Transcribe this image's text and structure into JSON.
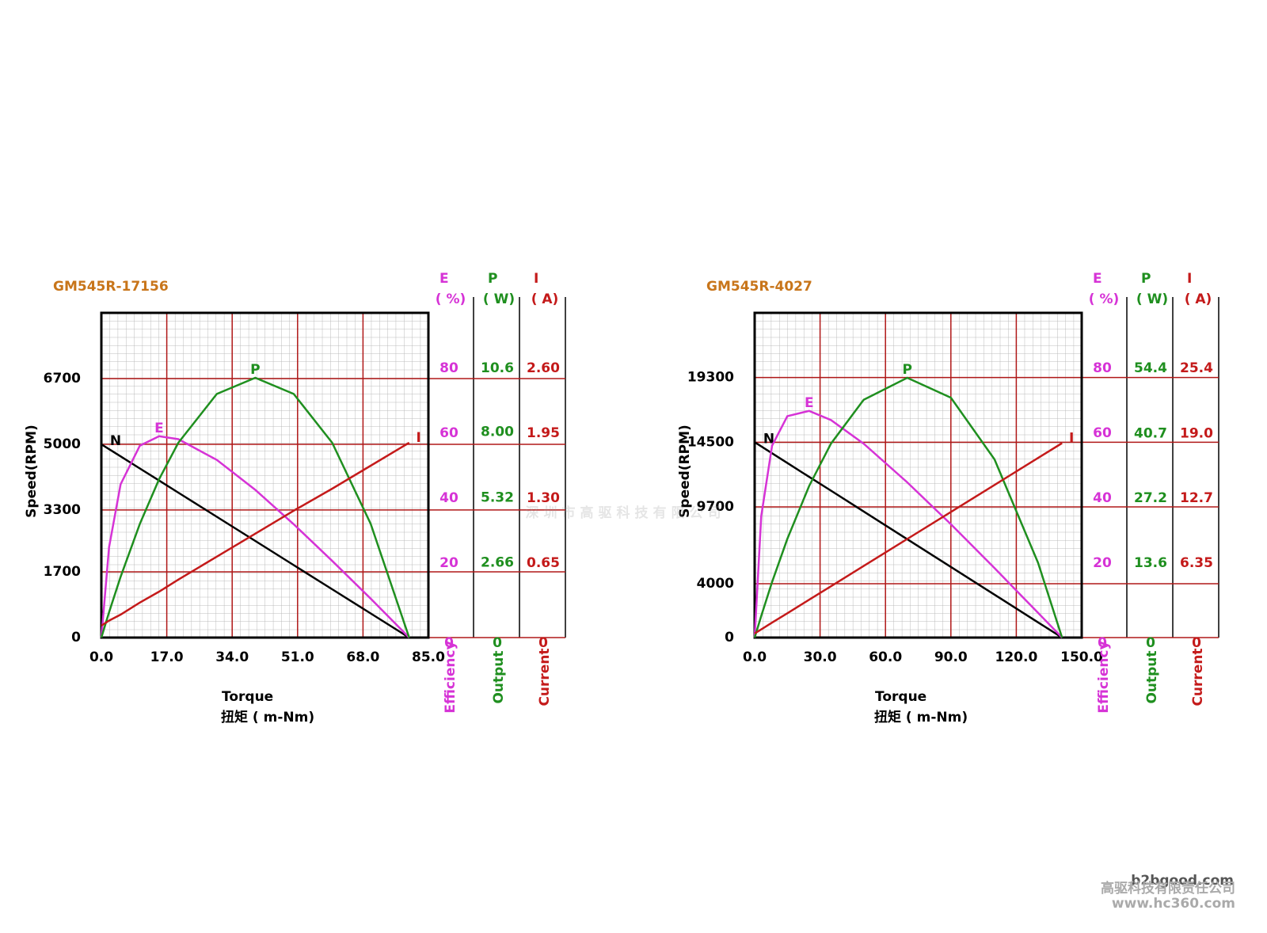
{
  "chart_data": [
    {
      "type": "line",
      "title": "GM545R-17156",
      "ylabel": "Speed(RPM)",
      "xlabel": [
        "Torque",
        "扭矩 ( m-Nm)"
      ],
      "xlim": [
        0,
        85
      ],
      "xticks": [
        {
          "value": 0,
          "label": "0.0"
        },
        {
          "value": 17,
          "label": "17.0"
        },
        {
          "value": 34,
          "label": "34.0"
        },
        {
          "value": 51,
          "label": "51.0"
        },
        {
          "value": 68,
          "label": "68.0"
        },
        {
          "value": 85,
          "label": "85.0"
        }
      ],
      "ylim": [
        0,
        8400
      ],
      "yticks": [
        0,
        1700,
        3300,
        5000,
        6700
      ],
      "grid": true,
      "right_axes": [
        {
          "letter": "E",
          "unit": "( %)",
          "name": "Efficiency",
          "color": "#d633d6",
          "lim": [
            0,
            100
          ],
          "ticks": [
            0,
            20,
            40,
            60,
            80
          ]
        },
        {
          "letter": "P",
          "unit": "( W)",
          "name": "Output",
          "color": "#1f8f1f",
          "lim": [
            0,
            13.25
          ],
          "ticks": [
            0,
            2.66,
            5.32,
            {
              "value": 8,
              "label": "8.00"
            },
            10.6
          ]
        },
        {
          "letter": "I",
          "unit": "( A)",
          "name": "Current",
          "color": "#c41a1a",
          "lim": [
            0,
            3.25
          ],
          "ticks": [
            0,
            0.65,
            {
              "value": 1.3,
              "label": "1.30"
            },
            1.95,
            {
              "value": 2.6,
              "label": "2.60"
            }
          ]
        }
      ],
      "x": [
        0,
        2,
        5,
        10,
        15,
        20,
        30,
        40,
        50,
        60,
        70,
        80
      ],
      "series": [
        {
          "name": "N",
          "color": "#000000",
          "axis": "y",
          "values": [
            5000,
            4875,
            4687.5,
            4375,
            4062.5,
            3750,
            3125,
            2500,
            1875,
            1250,
            625,
            0
          ]
        },
        {
          "name": "E",
          "color": "#d633d6",
          "axis": 0,
          "values": [
            0,
            27.8,
            47.2,
            59.1,
            62.0,
            61.1,
            54.7,
            45.5,
            34.9,
            23.6,
            12.0,
            0
          ]
        },
        {
          "name": "P",
          "color": "#1f8f1f",
          "axis": 1,
          "values": [
            0,
            1.03,
            2.48,
            4.64,
            6.46,
            7.95,
            9.94,
            10.6,
            9.94,
            7.95,
            4.64,
            0
          ]
        },
        {
          "name": "I",
          "color": "#c41a1a",
          "axis": 2,
          "values": [
            0.12,
            0.17,
            0.23,
            0.35,
            0.46,
            0.58,
            0.81,
            1.04,
            1.27,
            1.49,
            1.72,
            1.95
          ]
        }
      ]
    },
    {
      "type": "line",
      "title": "GM545R-4027",
      "ylabel": "Speed(RPM)",
      "xlabel": [
        "Torque",
        "扭矩 ( m-Nm)"
      ],
      "xlim": [
        0,
        150
      ],
      "xticks": [
        {
          "value": 0,
          "label": "0.0"
        },
        {
          "value": 30,
          "label": "30.0"
        },
        {
          "value": 60,
          "label": "60.0"
        },
        {
          "value": 90,
          "label": "90.0"
        },
        {
          "value": 120,
          "label": "120.0"
        },
        {
          "value": 150,
          "label": "150.0"
        }
      ],
      "ylim": [
        0,
        24100
      ],
      "yticks": [
        0,
        4000,
        9700,
        14500,
        19300
      ],
      "grid": true,
      "right_axes": [
        {
          "letter": "E",
          "unit": "( %)",
          "name": "Efficiency",
          "color": "#d633d6",
          "lim": [
            0,
            100
          ],
          "ticks": [
            0,
            20,
            40,
            60,
            80
          ]
        },
        {
          "letter": "P",
          "unit": "( W)",
          "name": "Output",
          "color": "#1f8f1f",
          "lim": [
            0,
            68
          ],
          "ticks": [
            0,
            13.6,
            27.2,
            40.7,
            54.4
          ]
        },
        {
          "letter": "I",
          "unit": "( A)",
          "name": "Current",
          "color": "#c41a1a",
          "lim": [
            0,
            31.75
          ],
          "ticks": [
            0,
            6.35,
            12.7,
            {
              "value": 19,
              "label": "19.0"
            },
            25.4
          ]
        }
      ],
      "x": [
        0,
        3,
        8,
        15,
        25,
        35,
        50,
        70,
        90,
        110,
        130,
        141
      ],
      "series": [
        {
          "name": "N",
          "color": "#000000",
          "axis": "y",
          "values": [
            14500,
            14191,
            13677,
            12957,
            11929,
            10901,
            9358,
            7301,
            5245,
            3188,
            1131,
            0
          ]
        },
        {
          "name": "E",
          "color": "#d633d6",
          "axis": 0,
          "values": [
            0,
            37.4,
            59.1,
            68.2,
            69.8,
            67.0,
            59.7,
            47.8,
            34.9,
            21.4,
            7.6,
            0
          ]
        },
        {
          "name": "P",
          "color": "#1f8f1f",
          "axis": 1,
          "values": [
            0,
            4.53,
            11.65,
            20.69,
            31.74,
            40.61,
            49.8,
            54.4,
            50.24,
            37.32,
            15.65,
            0
          ]
        },
        {
          "name": "I",
          "color": "#c41a1a",
          "axis": 2,
          "values": [
            0.4,
            0.8,
            1.46,
            2.38,
            3.7,
            5.02,
            7.0,
            9.64,
            12.28,
            14.92,
            17.56,
            19.01
          ]
        }
      ]
    }
  ],
  "watermark": "深圳市高驱科技有限公司",
  "footer": [
    "b2bgood.com",
    "高驱科技有限责任公司",
    "www.hc360.com"
  ]
}
